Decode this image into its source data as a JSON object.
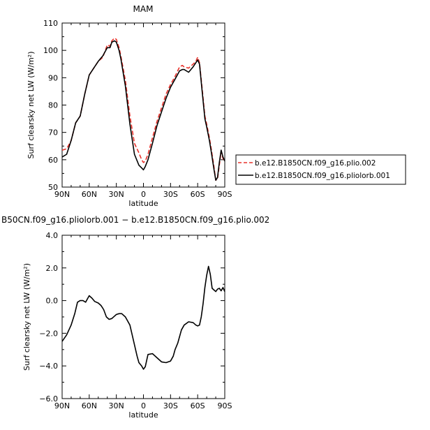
{
  "chart_data": [
    {
      "type": "line",
      "title": "MAM",
      "xlabel": "latitude",
      "ylabel": "Surf clearsky net LW (W/m²)",
      "xlim": [
        90,
        -90
      ],
      "ylim": [
        50,
        110
      ],
      "x_ticks": [
        90,
        60,
        30,
        0,
        -30,
        -60,
        -90
      ],
      "x_tick_labels": [
        "90N",
        "60N",
        "30N",
        "0",
        "30S",
        "60S",
        "90S"
      ],
      "y_ticks": [
        50,
        60,
        70,
        80,
        90,
        100,
        110
      ],
      "y_tick_labels": [
        "50",
        "60",
        "70",
        "80",
        "90",
        "100",
        "110"
      ],
      "legend_placement": "outside-right",
      "series": [
        {
          "name": "b.e12.B1850CN.f09_g16.plio.002",
          "color": "#e8322b",
          "dash": "dashed",
          "x": [
            90,
            85,
            80,
            75,
            70,
            65,
            60,
            55,
            50,
            45,
            40,
            37,
            35,
            32,
            30,
            27,
            25,
            20,
            15,
            10,
            5,
            2,
            0,
            -2,
            -5,
            -10,
            -15,
            -20,
            -25,
            -30,
            -35,
            -40,
            -43,
            -45,
            -50,
            -55,
            -58,
            -60,
            -62,
            -65,
            -68,
            -70,
            -73,
            -75,
            -78,
            -80,
            -82,
            -84,
            -86,
            -88,
            -90
          ],
          "y": [
            63.5,
            64,
            67,
            73.5,
            76,
            84,
            91,
            93.5,
            96,
            97.5,
            102,
            101.5,
            103.5,
            104.5,
            104,
            101,
            98,
            89,
            76,
            66,
            62.5,
            60,
            59,
            59.5,
            62,
            68,
            74,
            79,
            84,
            87.5,
            90.5,
            94,
            94.5,
            94,
            93.5,
            95,
            96,
            97.5,
            95.5,
            86,
            76,
            73,
            68,
            64,
            57.5,
            52.5,
            53,
            58,
            63,
            60.5,
            59.5
          ]
        },
        {
          "name": "b.e12.B1850CN.f09_g16.pliolorb.001",
          "color": "#000000",
          "dash": "solid",
          "x": [
            90,
            85,
            80,
            75,
            70,
            65,
            60,
            55,
            50,
            45,
            40,
            37,
            35,
            32,
            30,
            27,
            25,
            20,
            15,
            10,
            5,
            2,
            0,
            -2,
            -5,
            -10,
            -15,
            -20,
            -25,
            -30,
            -35,
            -40,
            -43,
            -45,
            -50,
            -55,
            -58,
            -60,
            -62,
            -65,
            -68,
            -70,
            -73,
            -75,
            -78,
            -80,
            -82,
            -84,
            -86,
            -88,
            -90
          ],
          "y": [
            61,
            62,
            67,
            73.5,
            76,
            84,
            91,
            93.5,
            96,
            98,
            101,
            101,
            103,
            103.5,
            103,
            100,
            97,
            87,
            73,
            62,
            58,
            57,
            56.3,
            57.5,
            60,
            66,
            72.5,
            77.5,
            82.5,
            86.5,
            89.5,
            92.5,
            93,
            93,
            92,
            94,
            95.5,
            96.5,
            95,
            85,
            75,
            72,
            67,
            63,
            56.5,
            52.5,
            53.5,
            59,
            63.5,
            61,
            59.5
          ]
        }
      ]
    },
    {
      "type": "line",
      "title": "B50CN.f09_g16.pliolorb.001 − b.e12.B1850CN.f09_g16.plio.002",
      "xlabel": "latitude",
      "ylabel": "Surf clearsky net LW (W/m²)",
      "xlim": [
        90,
        -90
      ],
      "ylim": [
        -6,
        4
      ],
      "x_ticks": [
        90,
        60,
        30,
        0,
        -30,
        -60,
        -90
      ],
      "x_tick_labels": [
        "90N",
        "60N",
        "30N",
        "0",
        "30S",
        "60S",
        "90S"
      ],
      "y_ticks": [
        -6,
        -4,
        -2,
        0,
        2,
        4
      ],
      "y_tick_labels": [
        "−6.0",
        "−4.0",
        "−2.0",
        "0.0",
        "2.0",
        "4.0"
      ],
      "series": [
        {
          "name": "",
          "color": "#000000",
          "dash": "solid",
          "x": [
            90,
            85,
            80,
            76,
            73,
            70,
            67,
            64,
            62,
            60,
            57,
            54,
            50,
            47,
            44,
            41,
            38,
            35,
            32,
            30,
            27,
            24,
            20,
            15,
            10,
            7,
            5,
            2,
            0,
            -2,
            -5,
            -10,
            -15,
            -20,
            -25,
            -30,
            -33,
            -35,
            -38,
            -42,
            -45,
            -50,
            -55,
            -58,
            -60,
            -62,
            -64,
            -66,
            -68,
            -70,
            -72,
            -74,
            -76,
            -78,
            -80,
            -82,
            -84,
            -86,
            -88,
            -90
          ],
          "y": [
            -2.5,
            -2.1,
            -1.5,
            -0.8,
            -0.1,
            0.0,
            0.0,
            -0.1,
            0.1,
            0.3,
            0.15,
            -0.05,
            -0.15,
            -0.3,
            -0.55,
            -1.0,
            -1.15,
            -1.1,
            -0.95,
            -0.85,
            -0.8,
            -0.8,
            -1.0,
            -1.5,
            -2.7,
            -3.4,
            -3.8,
            -4.0,
            -4.2,
            -4.05,
            -3.3,
            -3.25,
            -3.5,
            -3.75,
            -3.8,
            -3.7,
            -3.4,
            -3.0,
            -2.6,
            -1.8,
            -1.5,
            -1.3,
            -1.35,
            -1.5,
            -1.55,
            -1.5,
            -1.0,
            -0.2,
            0.8,
            1.55,
            2.1,
            1.6,
            0.75,
            0.65,
            0.55,
            0.7,
            0.75,
            0.6,
            0.8,
            0.55
          ]
        }
      ]
    }
  ]
}
